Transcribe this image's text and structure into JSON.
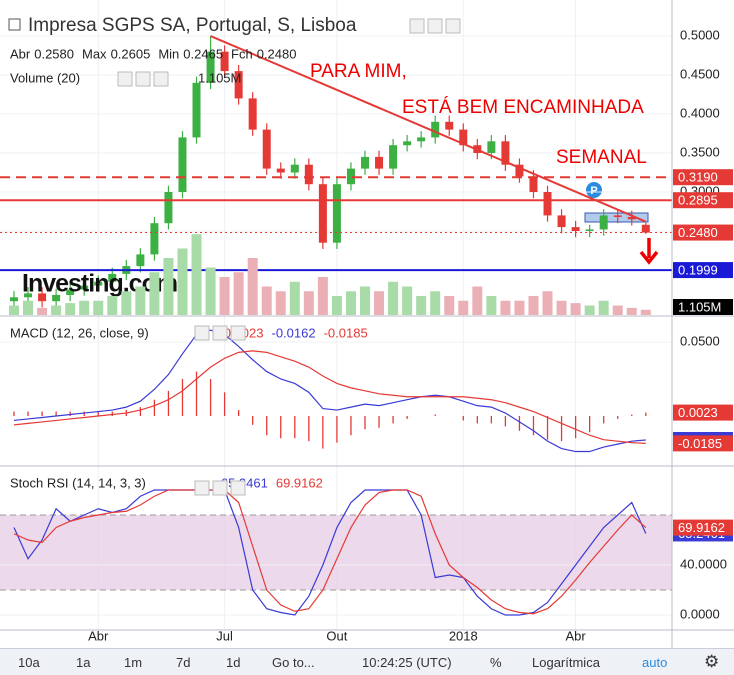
{
  "chart_data": [
    {
      "type": "candlestick",
      "title": "Impresa SGPS SA, Portugal, S, Lisboa",
      "ohlc_names": [
        "Abr",
        "Max",
        "Min",
        "Fch"
      ],
      "ohlc_labels": [
        "0.2580",
        "0.2605",
        "0.2465",
        "0.2480"
      ],
      "categories": [
        null,
        null,
        null,
        null,
        null,
        null,
        "Abr",
        null,
        null,
        null,
        null,
        null,
        null,
        null,
        null,
        "Jul",
        null,
        null,
        null,
        null,
        null,
        null,
        null,
        "Out",
        null,
        null,
        null,
        null,
        null,
        null,
        null,
        null,
        "2018",
        null,
        null,
        null,
        null,
        null,
        null,
        null,
        "Abr",
        null,
        null,
        null,
        null,
        null
      ],
      "open": [
        0.16,
        0.165,
        0.17,
        0.16,
        0.168,
        0.175,
        0.18,
        0.185,
        0.195,
        0.205,
        0.22,
        0.26,
        0.3,
        0.37,
        0.44,
        0.48,
        0.455,
        0.42,
        0.38,
        0.33,
        0.325,
        0.335,
        0.31,
        0.235,
        0.31,
        0.33,
        0.345,
        0.33,
        0.36,
        0.365,
        0.37,
        0.39,
        0.38,
        0.36,
        0.35,
        0.365,
        0.335,
        0.32,
        0.3,
        0.27,
        0.255,
        0.25,
        0.252,
        0.27,
        0.268,
        0.258
      ],
      "high": [
        0.173,
        0.178,
        0.178,
        0.176,
        0.183,
        0.188,
        0.193,
        0.203,
        0.213,
        0.228,
        0.268,
        0.308,
        0.378,
        0.448,
        0.5,
        0.488,
        0.463,
        0.428,
        0.388,
        0.338,
        0.343,
        0.343,
        0.318,
        0.318,
        0.338,
        0.353,
        0.353,
        0.368,
        0.373,
        0.378,
        0.398,
        0.398,
        0.388,
        0.368,
        0.373,
        0.373,
        0.343,
        0.328,
        0.308,
        0.278,
        0.263,
        0.258,
        0.278,
        0.278,
        0.276,
        0.2605
      ],
      "low": [
        0.152,
        0.157,
        0.152,
        0.152,
        0.16,
        0.167,
        0.172,
        0.177,
        0.187,
        0.197,
        0.212,
        0.252,
        0.292,
        0.362,
        0.432,
        0.447,
        0.412,
        0.372,
        0.322,
        0.317,
        0.317,
        0.302,
        0.227,
        0.227,
        0.302,
        0.322,
        0.322,
        0.322,
        0.352,
        0.357,
        0.362,
        0.372,
        0.352,
        0.342,
        0.342,
        0.327,
        0.312,
        0.292,
        0.262,
        0.247,
        0.242,
        0.242,
        0.244,
        0.26,
        0.257,
        0.2465
      ],
      "close": [
        0.165,
        0.17,
        0.16,
        0.168,
        0.175,
        0.18,
        0.185,
        0.195,
        0.205,
        0.22,
        0.26,
        0.3,
        0.37,
        0.44,
        0.48,
        0.455,
        0.42,
        0.38,
        0.33,
        0.325,
        0.335,
        0.31,
        0.235,
        0.31,
        0.33,
        0.345,
        0.33,
        0.36,
        0.365,
        0.37,
        0.39,
        0.38,
        0.36,
        0.35,
        0.365,
        0.335,
        0.32,
        0.3,
        0.27,
        0.255,
        0.25,
        0.252,
        0.27,
        0.268,
        0.265,
        0.248
      ],
      "up_color": "#3cb043",
      "down_color": "#e53935",
      "ylim": [
        0.1423,
        0.5308
      ],
      "yticks": [
        {
          "value": 0.2,
          "label": "0.2000"
        },
        {
          "value": 0.25,
          "label": "0.2500"
        },
        {
          "value": 0.3,
          "label": "0.3000"
        },
        {
          "value": 0.35,
          "label": "0.3500"
        },
        {
          "value": 0.4,
          "label": "0.4000"
        },
        {
          "value": 0.45,
          "label": "0.4500"
        },
        {
          "value": 0.5,
          "label": "0.5000"
        }
      ],
      "grid": true,
      "levels": [
        {
          "value": 0.319,
          "label": "0.3190",
          "color": "#e53935",
          "style": "dashed"
        },
        {
          "value": 0.2895,
          "label": "0.2895",
          "color": "#e53935",
          "style": "solid"
        },
        {
          "value": 0.248,
          "label": "0.2480",
          "color": "#e53935",
          "style": "dotted"
        },
        {
          "value": 0.1999,
          "label": "0.1999",
          "color": "#1a1ad6",
          "style": "solid"
        }
      ],
      "trendline": {
        "x": [
          14,
          45
        ],
        "y": [
          0.5,
          0.262
        ],
        "color": "#e53935"
      },
      "annotations": [
        "PARA MIM,",
        "ESTÁ BEM ENCAMINHADA",
        "SEMANAL"
      ],
      "watermark": "Investing.com"
    },
    {
      "type": "bar",
      "title": "Volume (20)",
      "values": [
        2,
        3,
        1.5,
        2,
        2.5,
        3,
        3,
        4,
        5,
        6,
        9,
        12,
        14,
        17,
        10,
        8,
        9,
        12,
        6,
        5,
        7,
        5,
        8,
        4,
        5,
        6,
        5,
        7,
        6,
        4,
        5,
        4,
        3,
        6,
        4,
        3,
        3,
        4,
        5,
        3,
        2.5,
        2,
        3,
        2,
        1.5,
        1.105
      ],
      "up_color": "#a8dba8",
      "down_color": "#eab0b6",
      "ylim": [
        0,
        20
      ],
      "tag": {
        "value": 1.105,
        "label": "1.105M"
      }
    },
    {
      "type": "line",
      "title": "MACD (12, 26, close, 9)",
      "series": [
        {
          "type": "bar",
          "color": "#e53935",
          "values": [
            0.003,
            0.003,
            0.003,
            0.003,
            0.003,
            0.003,
            0.003,
            0.003,
            0.004,
            0.006,
            0.011,
            0.017,
            0.025,
            0.03,
            0.025,
            0.016,
            0.004,
            -0.006,
            -0.013,
            -0.015,
            -0.015,
            -0.017,
            -0.022,
            -0.018,
            -0.013,
            -0.009,
            -0.008,
            -0.005,
            -0.002,
            0,
            0.001,
            0,
            -0.003,
            -0.005,
            -0.005,
            -0.007,
            -0.01,
            -0.013,
            -0.016,
            -0.017,
            -0.015,
            -0.011,
            -0.005,
            -0.002,
            0.001,
            0.0023
          ]
        },
        {
          "color": "#3a3ad6",
          "values": [
            -0.003,
            -0.002,
            -0.001,
            0,
            0.001,
            0.002,
            0.003,
            0.004,
            0.006,
            0.01,
            0.018,
            0.028,
            0.042,
            0.055,
            0.058,
            0.055,
            0.047,
            0.038,
            0.03,
            0.025,
            0.022,
            0.016,
            0.005,
            0.004,
            0.006,
            0.008,
            0.007,
            0.009,
            0.011,
            0.013,
            0.014,
            0.013,
            0.01,
            0.007,
            0.006,
            0.002,
            -0.004,
            -0.01,
            -0.017,
            -0.022,
            -0.024,
            -0.024,
            -0.021,
            -0.019,
            -0.017,
            -0.0162
          ]
        },
        {
          "color": "#e53935",
          "values": [
            -0.006,
            -0.005,
            -0.004,
            -0.003,
            -0.002,
            -0.001,
            0,
            0.001,
            0.002,
            0.004,
            0.007,
            0.011,
            0.017,
            0.025,
            0.033,
            0.039,
            0.043,
            0.044,
            0.043,
            0.04,
            0.037,
            0.033,
            0.027,
            0.022,
            0.019,
            0.017,
            0.015,
            0.014,
            0.013,
            0.013,
            0.013,
            0.013,
            0.013,
            0.012,
            0.011,
            0.009,
            0.006,
            0.003,
            -0.001,
            -0.005,
            -0.009,
            -0.013,
            -0.016,
            -0.017,
            -0.018,
            -0.0185
          ]
        }
      ],
      "ylim": [
        -0.0331,
        0.0635
      ],
      "yticks": [
        {
          "value": 0.05,
          "label": "0.0500"
        }
      ],
      "grid": true
    },
    {
      "type": "line",
      "title": "Stoch RSI (14, 14, 3, 3)",
      "series": [
        {
          "color": "#3a3ad6",
          "values": [
            70,
            45,
            60,
            85,
            75,
            80,
            85,
            82,
            85,
            95,
            100,
            100,
            100,
            100,
            100,
            100,
            70,
            20,
            5,
            2,
            0,
            15,
            40,
            70,
            90,
            100,
            100,
            100,
            100,
            80,
            30,
            32,
            30,
            15,
            5,
            0,
            0,
            2,
            10,
            25,
            40,
            55,
            70,
            80,
            90,
            65.2461
          ]
        },
        {
          "color": "#e53935",
          "values": [
            65,
            60,
            58,
            70,
            75,
            78,
            80,
            82,
            83,
            88,
            95,
            100,
            100,
            100,
            100,
            100,
            90,
            55,
            20,
            8,
            3,
            5,
            20,
            45,
            70,
            88,
            98,
            100,
            100,
            95,
            65,
            40,
            30,
            22,
            12,
            5,
            2,
            1,
            5,
            15,
            28,
            42,
            55,
            68,
            80,
            69.9162
          ]
        }
      ],
      "band": [
        20,
        80
      ],
      "band_color": "#e6cce6",
      "ylim": [
        -10.4,
        114.4
      ],
      "yticks": [
        {
          "value": 0,
          "label": "0.0000"
        },
        {
          "value": 40,
          "label": "40.0000"
        }
      ],
      "grid": true
    }
  ],
  "toolbar": [
    "10a",
    "1a",
    "1m",
    "7d",
    "1d",
    "Go to...",
    "10:24:25 (UTC)",
    "%",
    "Logarítmica",
    "auto"
  ]
}
